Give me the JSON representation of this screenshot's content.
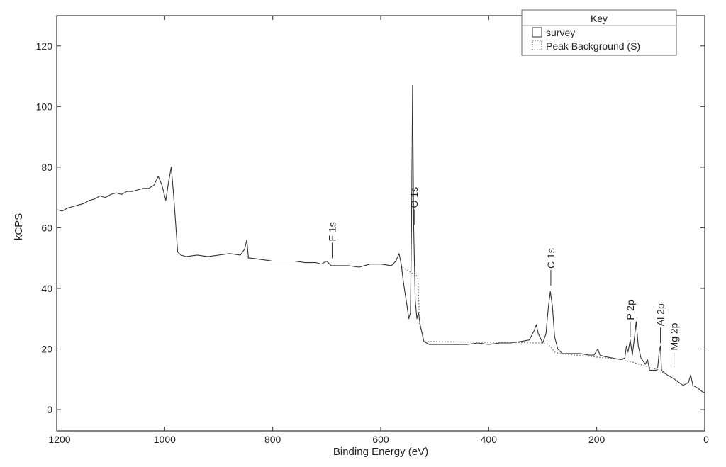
{
  "chart_data": {
    "type": "line",
    "xlabel": "Binding Energy (eV)",
    "ylabel": "kCPS",
    "xlim": [
      1200,
      0
    ],
    "ylim": [
      -7,
      130
    ],
    "x_reversed": true,
    "grid": false,
    "x_ticks": [
      "1200",
      "1000",
      "800",
      "600",
      "400",
      "200",
      "0"
    ],
    "y_ticks": [
      "0",
      "20",
      "40",
      "60",
      "80",
      "100",
      "120"
    ],
    "legend": {
      "title": "Key",
      "placement": "top-right",
      "entries": [
        "survey",
        "Peak Background (S)"
      ]
    },
    "series": [
      {
        "name": "survey",
        "style": "solid",
        "points": [
          [
            1200,
            66
          ],
          [
            1190,
            65.5
          ],
          [
            1180,
            66.5
          ],
          [
            1170,
            67
          ],
          [
            1160,
            67.5
          ],
          [
            1150,
            68
          ],
          [
            1140,
            69
          ],
          [
            1130,
            69.5
          ],
          [
            1120,
            70.5
          ],
          [
            1110,
            70
          ],
          [
            1100,
            71
          ],
          [
            1090,
            71.5
          ],
          [
            1080,
            71
          ],
          [
            1070,
            72
          ],
          [
            1060,
            72
          ],
          [
            1050,
            72.5
          ],
          [
            1040,
            73
          ],
          [
            1030,
            73
          ],
          [
            1020,
            74
          ],
          [
            1012,
            77
          ],
          [
            1005,
            74
          ],
          [
            998,
            69
          ],
          [
            993,
            75
          ],
          [
            988,
            80
          ],
          [
            984,
            72
          ],
          [
            980,
            62
          ],
          [
            976,
            52
          ],
          [
            970,
            51
          ],
          [
            960,
            50.5
          ],
          [
            940,
            51
          ],
          [
            920,
            50.5
          ],
          [
            900,
            51
          ],
          [
            880,
            51.5
          ],
          [
            860,
            51
          ],
          [
            852,
            53
          ],
          [
            848,
            56
          ],
          [
            845,
            50
          ],
          [
            840,
            50
          ],
          [
            820,
            49.5
          ],
          [
            800,
            49
          ],
          [
            780,
            49
          ],
          [
            760,
            49
          ],
          [
            740,
            48.5
          ],
          [
            720,
            48.5
          ],
          [
            710,
            48
          ],
          [
            700,
            49
          ],
          [
            692,
            47.5
          ],
          [
            680,
            47.5
          ],
          [
            660,
            47.5
          ],
          [
            640,
            47
          ],
          [
            620,
            48
          ],
          [
            600,
            48
          ],
          [
            580,
            47.5
          ],
          [
            572,
            49
          ],
          [
            566,
            51.5
          ],
          [
            562,
            48
          ],
          [
            558,
            42
          ],
          [
            552,
            35
          ],
          [
            548,
            30
          ],
          [
            545,
            32
          ],
          [
            543,
            60
          ],
          [
            541,
            107
          ],
          [
            539,
            60
          ],
          [
            536,
            36
          ],
          [
            533,
            30
          ],
          [
            530,
            32
          ],
          [
            527,
            28
          ],
          [
            520,
            22.5
          ],
          [
            510,
            21.5
          ],
          [
            500,
            21.5
          ],
          [
            480,
            21.5
          ],
          [
            460,
            21.5
          ],
          [
            440,
            21.5
          ],
          [
            420,
            22
          ],
          [
            400,
            21.5
          ],
          [
            380,
            22
          ],
          [
            360,
            22
          ],
          [
            340,
            22.5
          ],
          [
            325,
            23
          ],
          [
            316,
            26
          ],
          [
            312,
            28
          ],
          [
            308,
            25
          ],
          [
            300,
            22
          ],
          [
            294,
            25
          ],
          [
            290,
            33
          ],
          [
            286,
            39
          ],
          [
            282,
            34
          ],
          [
            278,
            24
          ],
          [
            272,
            20
          ],
          [
            264,
            18.5
          ],
          [
            250,
            18.5
          ],
          [
            230,
            18.5
          ],
          [
            215,
            18
          ],
          [
            205,
            18
          ],
          [
            198,
            20
          ],
          [
            194,
            18
          ],
          [
            185,
            17.5
          ],
          [
            170,
            17
          ],
          [
            156,
            16.5
          ],
          [
            148,
            17
          ],
          [
            145,
            21
          ],
          [
            142,
            19
          ],
          [
            138,
            23
          ],
          [
            134,
            18
          ],
          [
            130,
            24
          ],
          [
            127,
            29
          ],
          [
            123,
            21
          ],
          [
            118,
            17
          ],
          [
            110,
            15
          ],
          [
            106,
            16.5
          ],
          [
            102,
            13
          ],
          [
            90,
            13
          ],
          [
            87,
            14
          ],
          [
            84,
            19.5
          ],
          [
            82,
            21
          ],
          [
            80,
            13
          ],
          [
            70,
            11.5
          ],
          [
            60,
            10.5
          ],
          [
            52,
            9.5
          ],
          [
            40,
            8
          ],
          [
            30,
            9
          ],
          [
            26,
            11.5
          ],
          [
            22,
            8
          ],
          [
            12,
            7
          ],
          [
            5,
            6
          ],
          [
            0,
            5.5
          ]
        ]
      },
      {
        "name": "Peak Background (S)",
        "style": "dotted",
        "points": [
          [
            560,
            47
          ],
          [
            546,
            45.5
          ],
          [
            543,
            45
          ],
          [
            536,
            45
          ],
          [
            531,
            43
          ],
          [
            528,
            28
          ],
          [
            520,
            22.5
          ],
          [
            300,
            22
          ],
          [
            290,
            21.5
          ],
          [
            284,
            20.5
          ],
          [
            278,
            19
          ],
          [
            270,
            18.5
          ],
          [
            150,
            16.5
          ],
          [
            145,
            16
          ],
          [
            140,
            16
          ],
          [
            85,
            13
          ],
          [
            80,
            12.5
          ],
          [
            60,
            10.5
          ],
          [
            50,
            9.5
          ]
        ]
      }
    ],
    "annotations": [
      {
        "label": "F 1s",
        "x": 690,
        "y": 49
      },
      {
        "label": "O 1s",
        "x": 538,
        "y": 60
      },
      {
        "label": "C 1s",
        "x": 285,
        "y": 40
      },
      {
        "label": "P 2p",
        "x": 138,
        "y": 23
      },
      {
        "label": "Al 2p",
        "x": 82,
        "y": 21
      },
      {
        "label": "Mg 2p",
        "x": 57,
        "y": 13
      }
    ]
  }
}
